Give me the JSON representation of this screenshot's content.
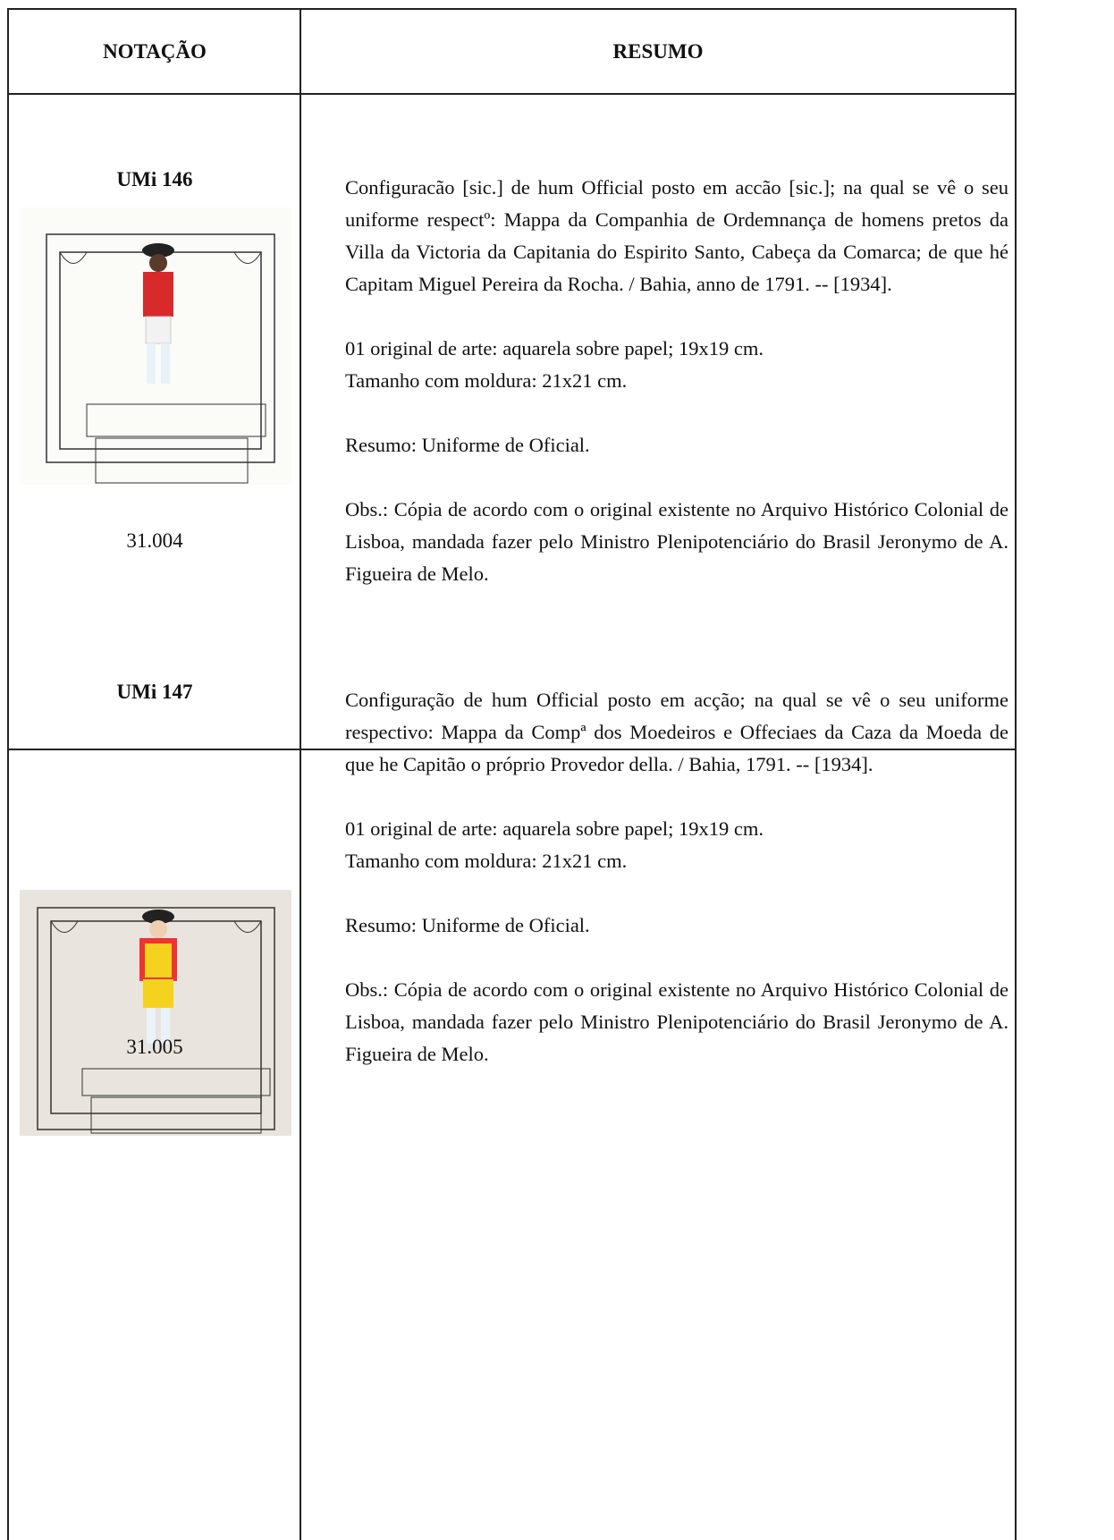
{
  "header": {
    "notation": "NOTAÇÃO",
    "summary": "RESUMO"
  },
  "rows": [
    {
      "id": "UMi 146",
      "number": "31.004",
      "description": "Configuracão [sic.] de hum Official posto em accão [sic.]; na qual se vê o seu uniforme respectº: Mappa da Companhia de Ordemnança de homens pretos da Villa da Victoria da Capitania do Espirito Santo, Cabeça da Comarca; de que hé Capitam Miguel Pereira da Rocha. / Bahia, anno de 1791. -- [1934].",
      "format": [
        "01 original de arte: aquarela sobre papel; 19x19 cm.",
        "Tamanho com moldura: 21x21 cm."
      ],
      "summary": "Resumo: Uniforme de Oficial.",
      "obs": "Obs.: Cópia de acordo com o original existente no Arquivo Histórico Colonial de Lisboa, mandada fazer pelo Ministro Plenipotenciário do Brasil Jeronymo de A. Figueira de Melo."
    },
    {
      "id": "UMi 147",
      "number": "31.005",
      "description": "Configuração de hum Official posto em acção; na qual se vê o seu uniforme respectivo: Mappa da Compª dos Moedeiros e Offeciaes da Caza da Moeda de que he Capitão o próprio Provedor della. / Bahia, 1791. -- [1934].",
      "format": [
        "01 original de arte: aquarela sobre papel; 19x19 cm.",
        "Tamanho com moldura: 21x21 cm."
      ],
      "summary": "Resumo: Uniforme de Oficial.",
      "obs": "Obs.: Cópia de acordo com o original existente no Arquivo Histórico Colonial de Lisboa, mandada fazer pelo Ministro Plenipotenciário do Brasil Jeronymo de A. Figueira de Melo."
    }
  ]
}
